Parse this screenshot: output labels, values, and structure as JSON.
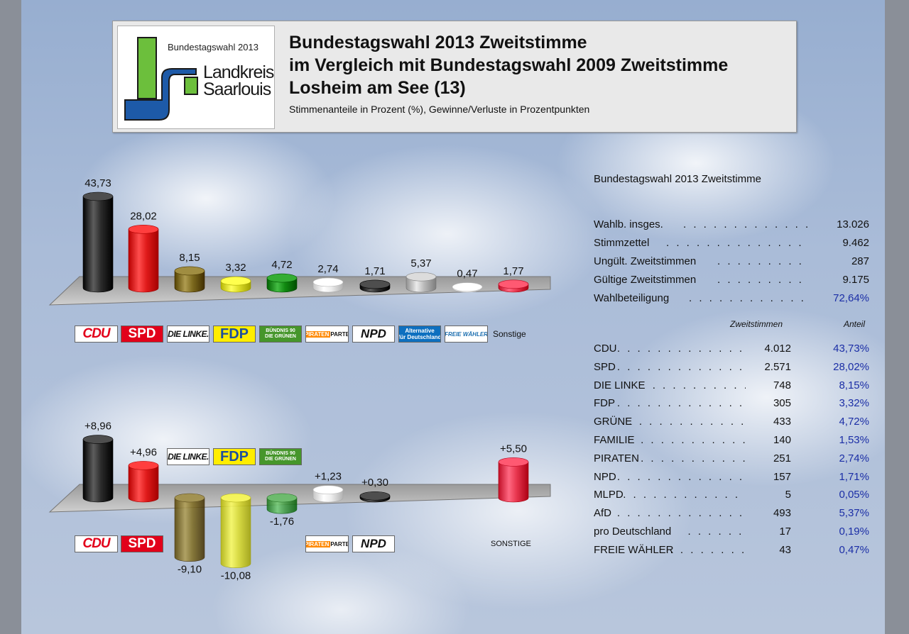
{
  "header": {
    "logo_year": "Bundestagswahl 2013",
    "logo_name_1": "Landkreis",
    "logo_name_2": "Saarlouis",
    "title_1": "Bundestagswahl 2013 Zweitstimme",
    "title_2": "im Vergleich mit Bundestagswahl 2009 Zweitstimme",
    "title_3": "Losheim am See (13)",
    "subtitle": "Stimmenanteile in Prozent (%), Gewinne/Verluste in Prozentpunkten"
  },
  "logos": {
    "cdu": "CDU",
    "spd": "SPD",
    "linke": "DIE LINKE.",
    "fdp": "FDP",
    "gruene_1": "BÜNDNIS 90",
    "gruene_2": "DIE GRÜNEN",
    "piraten_1": "PIRATEN",
    "piraten_2": "PARTEI",
    "npd": "NPD",
    "afd_1": "Alternative",
    "afd_2": "für Deutschland",
    "fw": "FREIE WÄHLER",
    "sonstige": "Sonstige",
    "sonstige_upper": "SONSTIGE"
  },
  "chart_data": [
    {
      "type": "bar",
      "categories": [
        "CDU",
        "SPD",
        "DIE LINKE",
        "FDP",
        "GRÜNE",
        "PIRATEN",
        "NPD",
        "AfD",
        "FREIE WÄHLER",
        "Sonstige"
      ],
      "values": [
        43.73,
        28.02,
        8.15,
        3.32,
        4.72,
        2.74,
        1.71,
        5.37,
        0.47,
        1.77
      ],
      "labels": [
        "43,73",
        "28,02",
        "8,15",
        "3,32",
        "4,72",
        "2,74",
        "1,71",
        "5,37",
        "0,47",
        "1,77"
      ],
      "colors": [
        "#2b2b2b",
        "#e01b1b",
        "#7d6a1e",
        "#dede2a",
        "#118a11",
        "#eeeeee",
        "#2b2b2b",
        "#b9b9b9",
        "#f2f2f2",
        "#e8364f"
      ]
    },
    {
      "type": "bar",
      "categories": [
        "CDU",
        "SPD",
        "DIE LINKE",
        "FDP",
        "GRÜNE",
        "PIRATEN",
        "NPD",
        "SONSTIGE"
      ],
      "values": [
        8.96,
        4.96,
        -9.1,
        -10.08,
        -1.76,
        1.23,
        0.3,
        5.5
      ],
      "labels": [
        "+8,96",
        "+4,96",
        "-9,10",
        "-10,08",
        "-1,76",
        "+1,23",
        "+0,30",
        "+5,50"
      ],
      "colors": [
        "#2b2b2b",
        "#e01b1b",
        "#7d6a1e",
        "#dede2a",
        "#3f9a3f",
        "#eeeeee",
        "#2b2b2b",
        "#e8364f"
      ]
    }
  ],
  "stats": {
    "title": "Bundestagswahl 2013 Zweitstimme",
    "rows": [
      {
        "label": "Wahlb. insges.",
        "value": "13.026"
      },
      {
        "label": "Stimmzettel",
        "value": "9.462"
      },
      {
        "label": "Ungült. Zweitstimmen",
        "value": "287"
      },
      {
        "label": "Gültige Zweitstimmen",
        "value": "9.175"
      },
      {
        "label": "Wahlbeteiligung",
        "value": "72,64%"
      }
    ],
    "col_votes": "Zweitstimmen",
    "col_share": "Anteil",
    "parties": [
      {
        "name": "CDU",
        "votes": "4.012",
        "share": "43,73%"
      },
      {
        "name": "SPD",
        "votes": "2.571",
        "share": "28,02%"
      },
      {
        "name": "DIE LINKE",
        "votes": "748",
        "share": "8,15%"
      },
      {
        "name": "FDP",
        "votes": "305",
        "share": "3,32%"
      },
      {
        "name": "GRÜNE",
        "votes": "433",
        "share": "4,72%"
      },
      {
        "name": "FAMILIE",
        "votes": "140",
        "share": "1,53%"
      },
      {
        "name": "PIRATEN",
        "votes": "251",
        "share": "2,74%"
      },
      {
        "name": "NPD",
        "votes": "157",
        "share": "1,71%"
      },
      {
        "name": "MLPD",
        "votes": "5",
        "share": "0,05%"
      },
      {
        "name": "AfD",
        "votes": "493",
        "share": "5,37%"
      },
      {
        "name": "pro Deutschland",
        "votes": "17",
        "share": "0,19%"
      },
      {
        "name": "FREIE WÄHLER",
        "votes": "43",
        "share": "0,47%"
      }
    ]
  }
}
